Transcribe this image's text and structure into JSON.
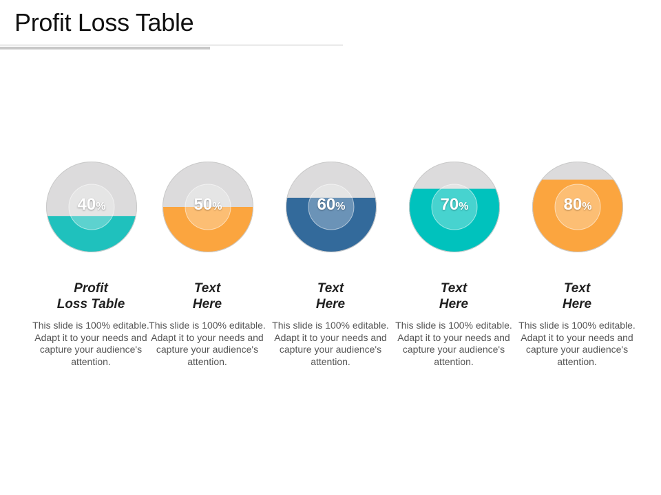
{
  "slide": {
    "title": "Profit Loss Table"
  },
  "items": [
    {
      "percent": 40,
      "percent_number": "40",
      "percent_symbol": "%",
      "fill_color": "#1fc1bd",
      "title_line1": "Profit",
      "title_line2": "Loss Table",
      "description": "This slide is 100% editable. Adapt it to your needs and capture your audience's attention."
    },
    {
      "percent": 50,
      "percent_number": "50",
      "percent_symbol": "%",
      "fill_color": "#fba53f",
      "title_line1": "Text",
      "title_line2": "Here",
      "description": "This slide is 100% editable. Adapt it to your needs and capture your audience's attention."
    },
    {
      "percent": 60,
      "percent_number": "60",
      "percent_symbol": "%",
      "fill_color": "#336a9b",
      "title_line1": "Text",
      "title_line2": "Here",
      "description": "This slide is 100% editable. Adapt it to your needs and capture your audience's attention."
    },
    {
      "percent": 70,
      "percent_number": "70",
      "percent_symbol": "%",
      "fill_color": "#00c2bd",
      "title_line1": "Text",
      "title_line2": "Here",
      "description": "This slide is 100% editable. Adapt it to your needs and capture your audience's attention."
    },
    {
      "percent": 80,
      "percent_number": "80",
      "percent_symbol": "%",
      "fill_color": "#fba53f",
      "title_line1": "Text",
      "title_line2": "Here",
      "description": "This slide is 100% editable. Adapt it to your needs and capture your audience's attention."
    }
  ],
  "colors": {
    "empty_fill": "#dcdbdc"
  }
}
